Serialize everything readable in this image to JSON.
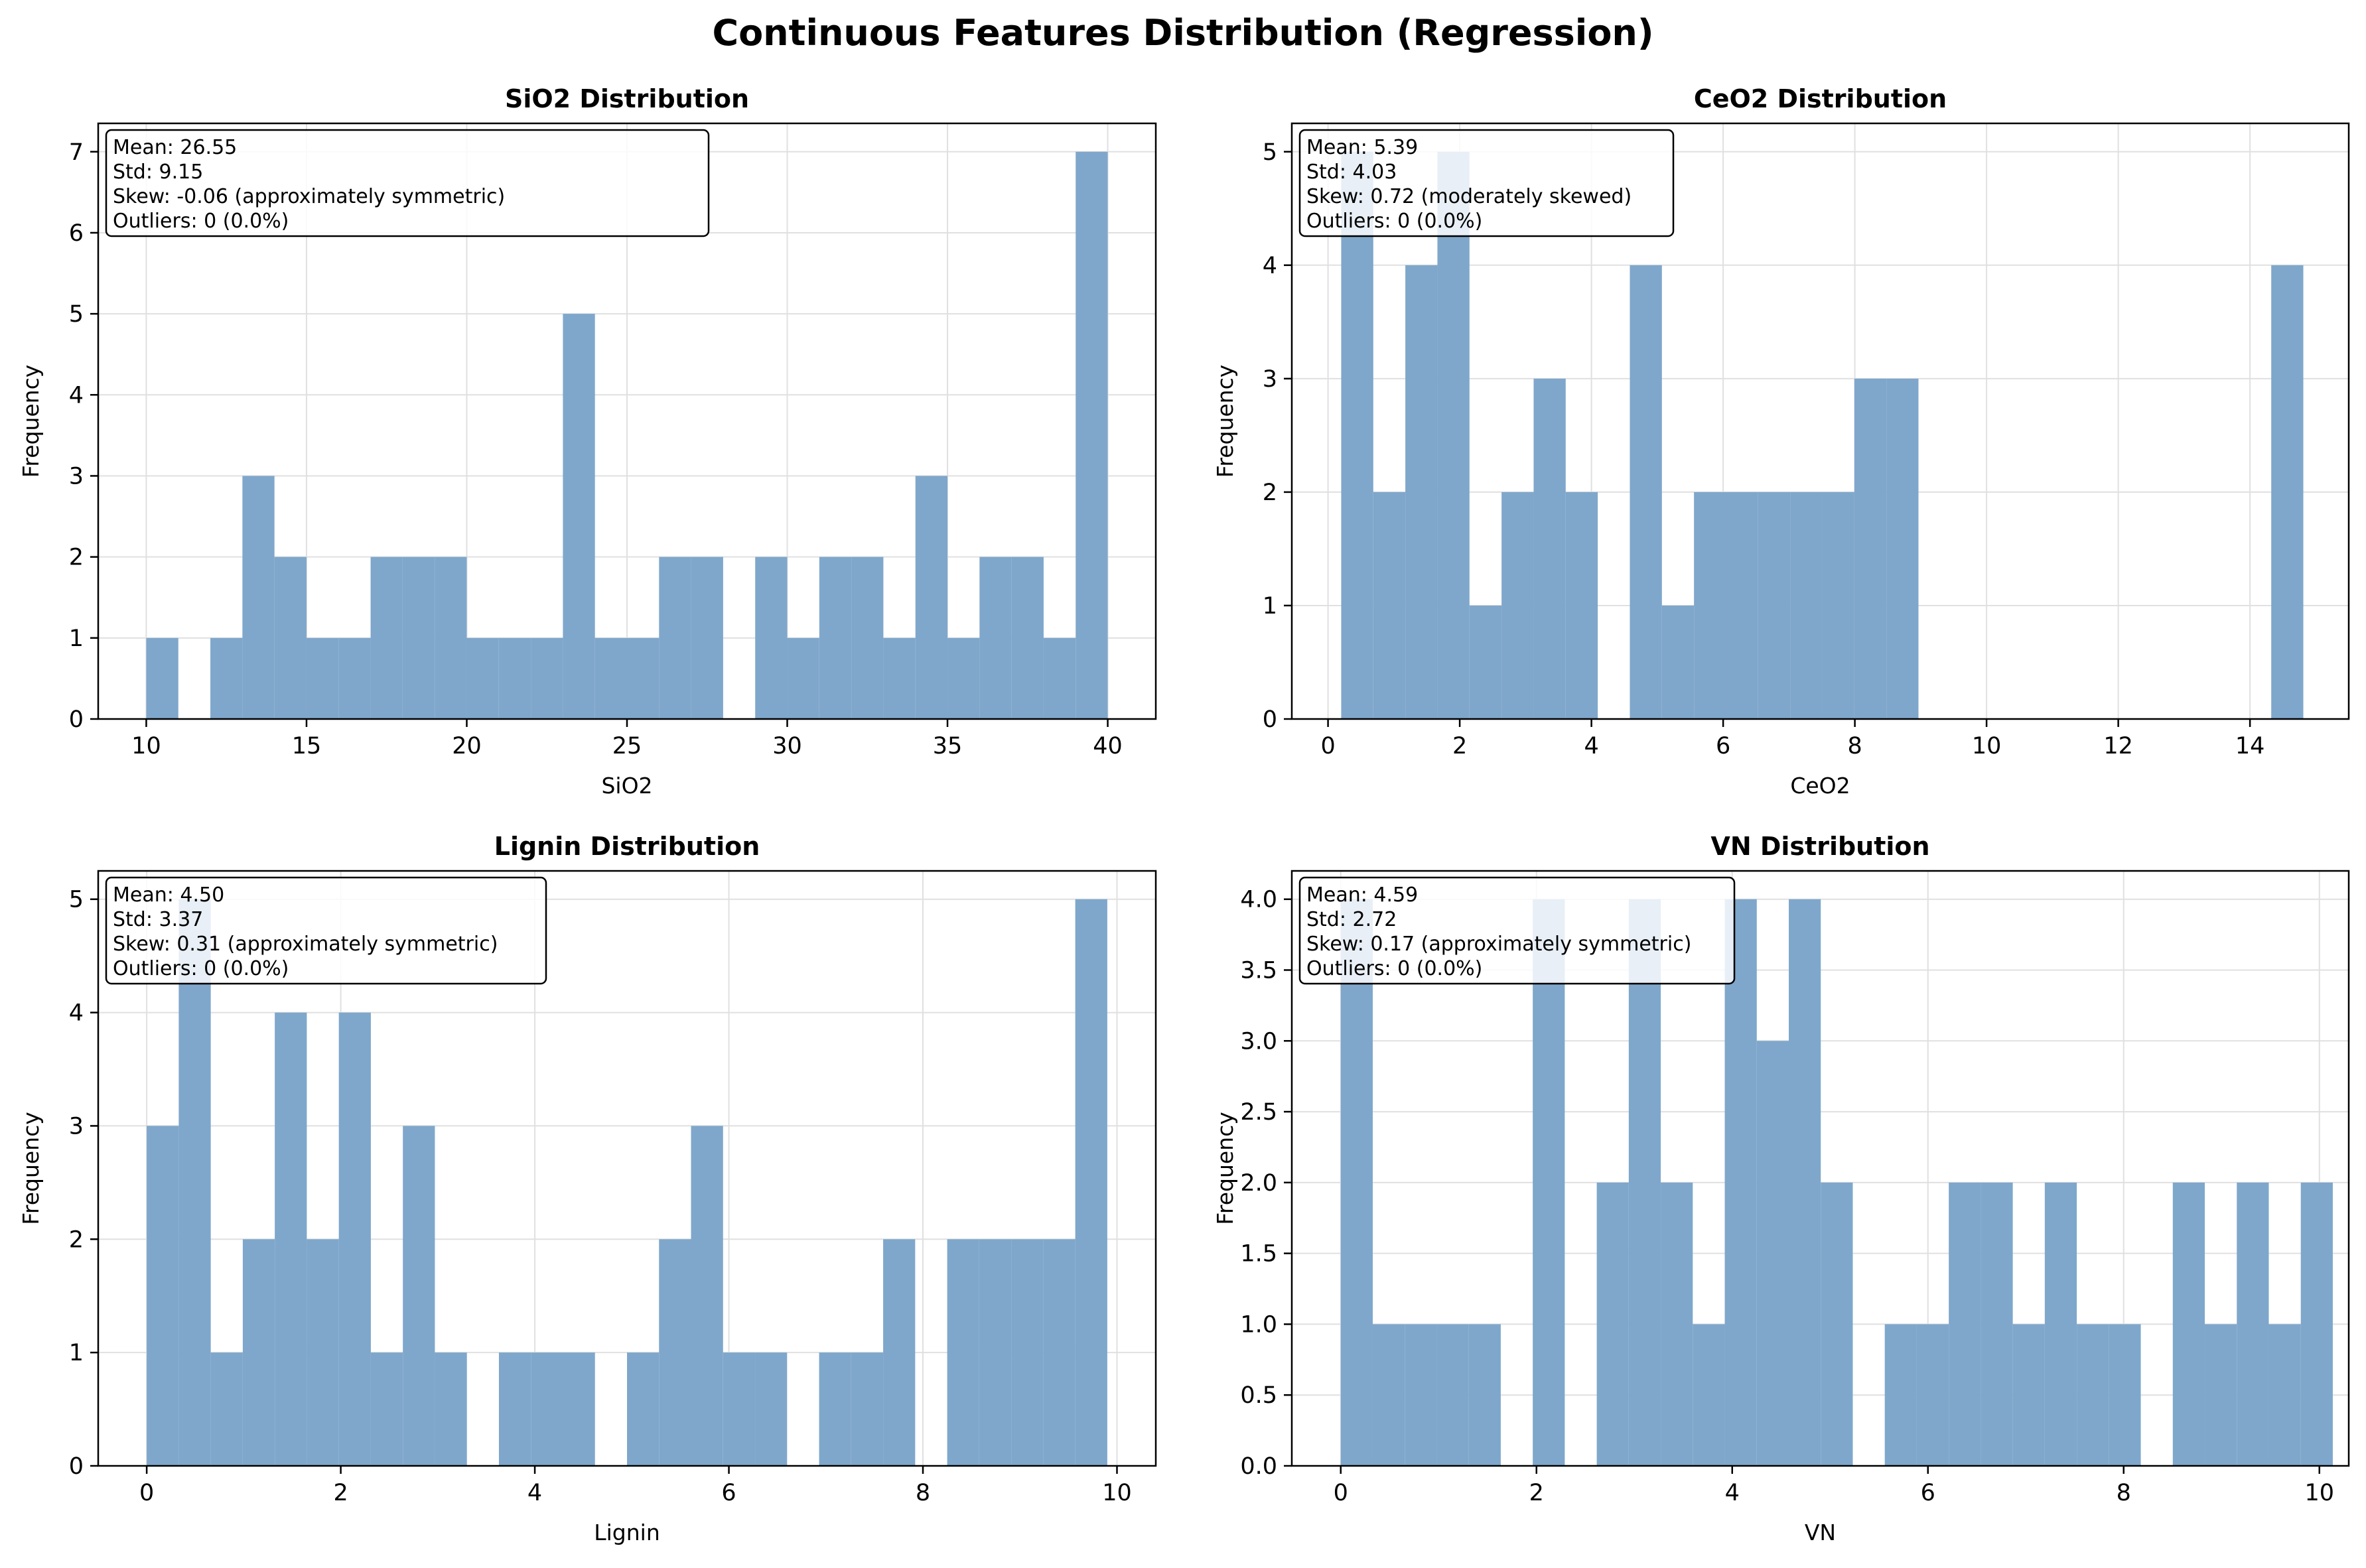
{
  "figure_title": "Continuous Features Distribution (Regression)",
  "colors": {
    "bar": "#7fa7cb",
    "axis": "#000000",
    "grid": "#e0e0e0"
  },
  "chart_data": [
    {
      "type": "bar",
      "title": "SiO2 Distribution",
      "xlabel": "SiO2",
      "ylabel": "Frequency",
      "xlim": [
        8.5,
        41.5
      ],
      "ylim": [
        0,
        7.35
      ],
      "xticks": [
        10,
        15,
        20,
        25,
        30,
        35,
        40
      ],
      "yticks": [
        0,
        1,
        2,
        3,
        4,
        5,
        6,
        7
      ],
      "ytick_labels": [
        "0",
        "1",
        "2",
        "3",
        "4",
        "5",
        "6",
        "7"
      ],
      "grid": true,
      "stats_box": [
        "Mean: 26.55",
        "Std: 9.15",
        "Skew: -0.06 (approximately symmetric)",
        "Outliers: 0 (0.0%)"
      ],
      "bin_start": 10.0,
      "bin_width": 1.0,
      "counts": [
        1,
        0,
        1,
        3,
        2,
        1,
        1,
        2,
        2,
        2,
        1,
        1,
        1,
        5,
        1,
        1,
        2,
        2,
        0,
        2,
        1,
        2,
        2,
        1,
        3,
        1,
        2,
        2,
        1,
        7
      ]
    },
    {
      "type": "bar",
      "title": "CeO2 Distribution",
      "xlabel": "CeO2",
      "ylabel": "Frequency",
      "xlim": [
        -0.55,
        15.5
      ],
      "ylim": [
        0,
        5.25
      ],
      "xticks": [
        0,
        2,
        4,
        6,
        8,
        10,
        12,
        14
      ],
      "yticks": [
        0,
        1,
        2,
        3,
        4,
        5
      ],
      "ytick_labels": [
        "0",
        "1",
        "2",
        "3",
        "4",
        "5"
      ],
      "grid": true,
      "stats_box": [
        "Mean: 5.39",
        "Std: 4.03",
        "Skew: 0.72 (moderately skewed)",
        "Outliers: 0 (0.0%)"
      ],
      "bin_start": 0.2,
      "bin_width": 0.487,
      "counts": [
        5,
        2,
        4,
        5,
        1,
        2,
        3,
        2,
        0,
        4,
        1,
        2,
        2,
        2,
        2,
        2,
        3,
        3,
        0,
        0,
        0,
        0,
        0,
        0,
        0,
        0,
        0,
        0,
        0,
        4
      ]
    },
    {
      "type": "bar",
      "title": "Lignin Distribution",
      "xlabel": "Lignin",
      "ylabel": "Frequency",
      "xlim": [
        -0.5,
        10.4
      ],
      "ylim": [
        0,
        5.25
      ],
      "xticks": [
        0,
        2,
        4,
        6,
        8,
        10
      ],
      "yticks": [
        0,
        1,
        2,
        3,
        4,
        5
      ],
      "ytick_labels": [
        "0",
        "1",
        "2",
        "3",
        "4",
        "5"
      ],
      "grid": true,
      "stats_box": [
        "Mean: 4.50",
        "Std: 3.37",
        "Skew: 0.31 (approximately symmetric)",
        "Outliers: 0 (0.0%)"
      ],
      "bin_start": 0.0,
      "bin_width": 0.33,
      "counts": [
        3,
        5,
        1,
        2,
        4,
        2,
        4,
        1,
        3,
        1,
        0,
        1,
        1,
        1,
        0,
        1,
        2,
        3,
        1,
        1,
        0,
        1,
        1,
        2,
        0,
        2,
        2,
        2,
        2,
        5
      ]
    },
    {
      "type": "bar",
      "title": "VN Distribution",
      "xlabel": "VN",
      "ylabel": "Frequency",
      "xlim": [
        -0.5,
        10.3
      ],
      "ylim": [
        0,
        4.2
      ],
      "xticks": [
        0,
        2,
        4,
        6,
        8,
        10
      ],
      "yticks": [
        0,
        0.5,
        1,
        1.5,
        2,
        2.5,
        3,
        3.5,
        4
      ],
      "ytick_labels": [
        "0.0",
        "0.5",
        "1.0",
        "1.5",
        "2.0",
        "2.5",
        "3.0",
        "3.5",
        "4.0"
      ],
      "grid": true,
      "stats_box": [
        "Mean: 4.59",
        "Std: 2.72",
        "Skew: 0.17 (approximately symmetric)",
        "Outliers: 0 (0.0%)"
      ],
      "bin_start": 0.0,
      "bin_width": 0.327,
      "counts": [
        4,
        1,
        1,
        1,
        1,
        0,
        4,
        0,
        2,
        4,
        2,
        1,
        4,
        3,
        4,
        2,
        0,
        1,
        1,
        2,
        2,
        1,
        2,
        1,
        1,
        0,
        2,
        1,
        2,
        1,
        2
      ]
    }
  ]
}
